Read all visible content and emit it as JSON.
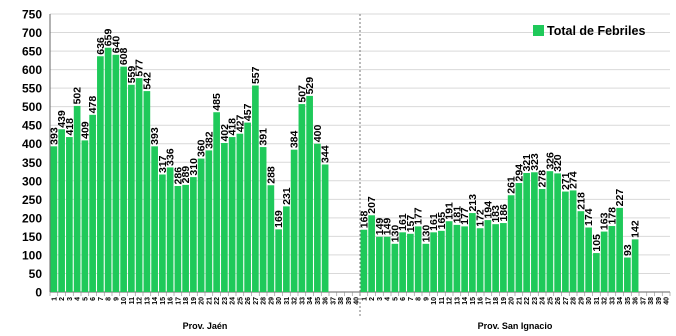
{
  "chart_data": {
    "type": "bar",
    "legend": "top-right",
    "series_name": "Total de Febriles",
    "color": "#1fc95a",
    "ylim": [
      0,
      750
    ],
    "ytick_step": 50,
    "grid": true,
    "categories": [
      "1",
      "2",
      "3",
      "4",
      "5",
      "6",
      "7",
      "8",
      "9",
      "10",
      "11",
      "12",
      "13",
      "14",
      "15",
      "16",
      "17",
      "18",
      "19",
      "20",
      "21",
      "22",
      "23",
      "24",
      "25",
      "26",
      "27",
      "28",
      "29",
      "30",
      "31",
      "32",
      "33",
      "34",
      "35",
      "36",
      "37",
      "38",
      "39",
      "40"
    ],
    "panels": [
      {
        "label": "Prov. Jaén",
        "values": [
          393,
          439,
          418,
          502,
          409,
          478,
          636,
          659,
          640,
          608,
          559,
          577,
          542,
          393,
          317,
          336,
          286,
          289,
          310,
          360,
          382,
          485,
          402,
          418,
          427,
          457,
          557,
          391,
          288,
          169,
          231,
          384,
          507,
          529,
          400,
          344,
          null,
          null,
          null,
          null
        ],
        "value_labels": [
          "393",
          "439",
          "418",
          "502",
          "409",
          "478",
          "636",
          "659",
          "640",
          "608",
          "559",
          "577",
          "542",
          "393",
          "317",
          "336",
          "286",
          "289",
          "310",
          "360",
          "382",
          "485",
          "402",
          "418",
          "427",
          "457",
          "557",
          "391",
          "288",
          "169",
          "231",
          "384",
          "507",
          "529",
          "400",
          "344",
          "",
          "",
          "",
          ""
        ]
      },
      {
        "label": "Prov. San Ignacio",
        "values": [
          168,
          207,
          149,
          149,
          130,
          161,
          157,
          177,
          130,
          161,
          165,
          191,
          181,
          177,
          213,
          172,
          194,
          183,
          186,
          261,
          294,
          321,
          323,
          278,
          326,
          320,
          271,
          274,
          218,
          174,
          105,
          163,
          178,
          227,
          93,
          142,
          null,
          null,
          null,
          null
        ],
        "value_labels": [
          "168",
          "207",
          "149",
          "149",
          "130",
          "161",
          "157",
          "177",
          "130",
          "161",
          "165",
          "191",
          "181",
          "177",
          "213",
          "172",
          "194",
          "183",
          "186",
          "261",
          "294",
          "321",
          "323",
          "278",
          "326",
          "320",
          "271",
          "274",
          "218",
          "174",
          "105",
          "163",
          "178",
          "227",
          "93",
          "142",
          "",
          "",
          "",
          ""
        ]
      }
    ]
  }
}
